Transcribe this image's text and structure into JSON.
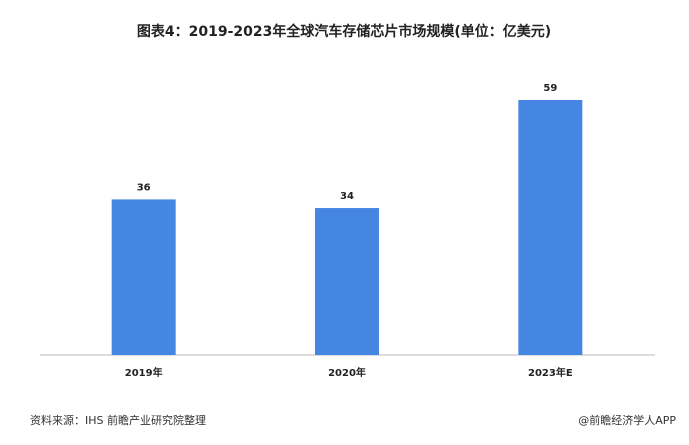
{
  "chart_data": {
    "type": "bar",
    "title": "图表4：2019-2023年全球汽车存储芯片市场规模(单位：亿美元)",
    "categories": [
      "2019年",
      "2020年",
      "2023年E"
    ],
    "values": [
      36,
      34,
      59
    ],
    "color": "#4586e2",
    "source": "资料来源：IHS 前瞻产业研究院整理",
    "credit": "@前瞻经济学人APP"
  }
}
